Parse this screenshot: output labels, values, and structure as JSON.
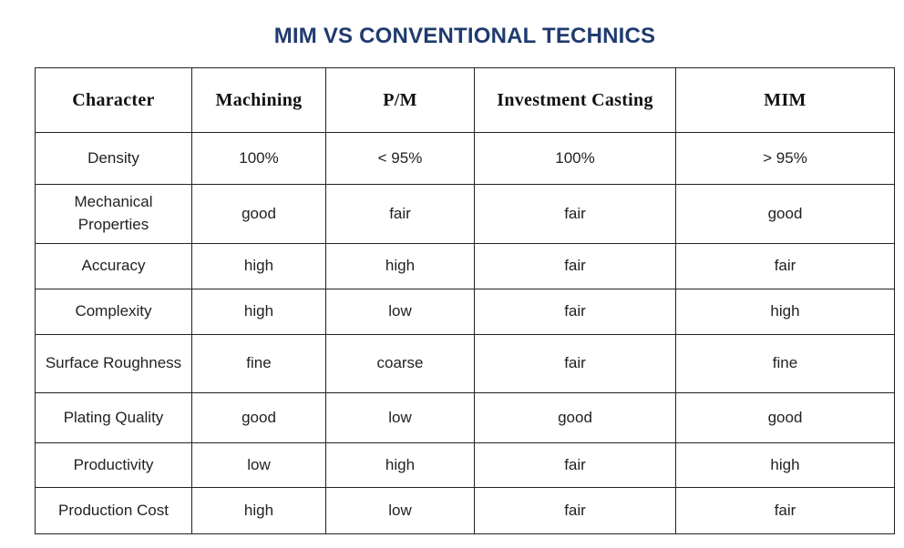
{
  "title": "MIM VS CONVENTIONAL TECHNICS",
  "table": {
    "headers": [
      "Character",
      "Machining",
      "P/M",
      "Investment Casting",
      "MIM"
    ],
    "rows": [
      [
        "Density",
        "100%",
        "< 95%",
        "100%",
        "> 95%"
      ],
      [
        "Mechanical Properties",
        "good",
        "fair",
        "fair",
        "good"
      ],
      [
        "Accuracy",
        "high",
        "high",
        "fair",
        "fair"
      ],
      [
        "Complexity",
        "high",
        "low",
        "fair",
        "high"
      ],
      [
        "Surface Roughness",
        "fine",
        "coarse",
        "fair",
        "fine"
      ],
      [
        "Plating Quality",
        "good",
        "low",
        "good",
        "good"
      ],
      [
        "Productivity",
        "low",
        "high",
        "fair",
        "high"
      ],
      [
        "Production Cost",
        "high",
        "low",
        "fair",
        "fair"
      ]
    ]
  }
}
